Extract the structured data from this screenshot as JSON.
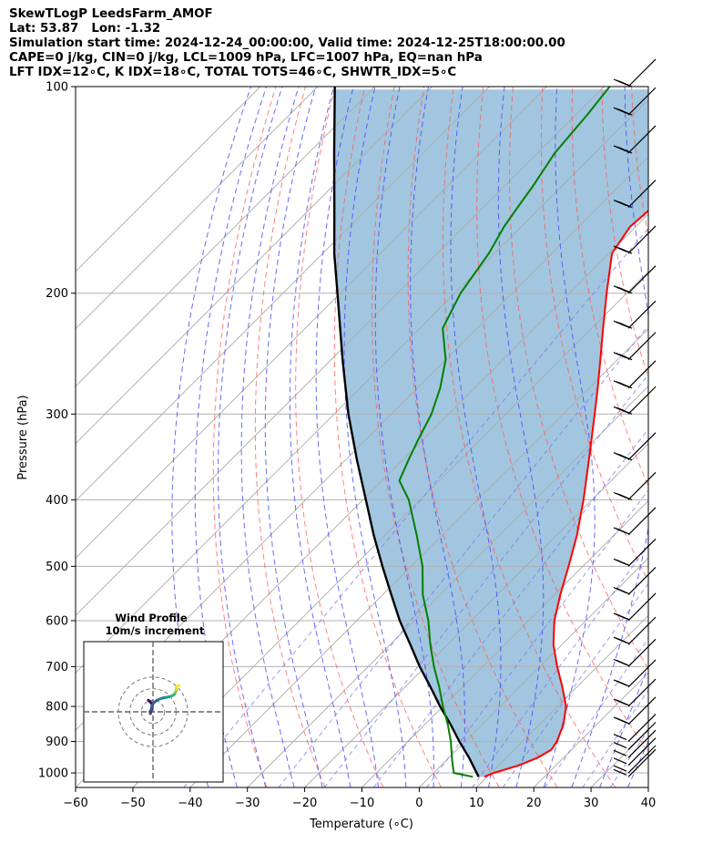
{
  "header": {
    "line1": "SkewTLogP LeedsFarm_AMOF",
    "line2": "Lat: 53.87   Lon: -1.32",
    "line3": "Simulation start time: 2024-12-24_00:00:00, Valid time: 2024-12-25T18:00:00.00",
    "line4": "CAPE=0 j/kg, CIN=0 j/kg, LCL=1009 hPa, LFC=1007 hPa, EQ=nan hPa",
    "line5": "LFT IDX=12∘C, K IDX=18∘C, TOTAL TOTS=46∘C, SHWTR_IDX=5∘C"
  },
  "chart_data": [
    {
      "type": "line",
      "subtype": "skew-t log-p",
      "xlabel": "Temperature (∘C)",
      "ylabel": "Pressure (hPa)",
      "xlim": [
        -60,
        40
      ],
      "ylim": [
        1050,
        100
      ],
      "y_scale": "log",
      "xticks": [
        "−60",
        "−50",
        "−40",
        "−30",
        "−20",
        "−10",
        "0",
        "10",
        "20",
        "30",
        "40"
      ],
      "yticks": [
        "100",
        "200",
        "300",
        "400",
        "500",
        "600",
        "700",
        "800",
        "900",
        "1000"
      ],
      "grid": true,
      "colors": {
        "temperature": "#ff0000",
        "dewpoint": "#008000",
        "parcel": "#000000",
        "fill": "#a2c6df",
        "dry_adiabat": "#ff5555",
        "moist_adiabat": "#4444ff",
        "mixing_ratio": "#7777ee",
        "isotherm": "#aaaaaa"
      },
      "series": [
        {
          "role": "temperature",
          "points": [
            [
              1013,
              9.5
            ],
            [
              1000,
              10.5
            ],
            [
              975,
              13.5
            ],
            [
              950,
              15.5
            ],
            [
              925,
              16.5
            ],
            [
              900,
              16.0
            ],
            [
              850,
              14.2
            ],
            [
              800,
              11.5
            ],
            [
              750,
              7.5
            ],
            [
              700,
              3.0
            ],
            [
              650,
              -1.5
            ],
            [
              600,
              -5.5
            ],
            [
              550,
              -9.0
            ],
            [
              500,
              -12.5
            ],
            [
              450,
              -16.5
            ],
            [
              400,
              -21.5
            ],
            [
              350,
              -27.5
            ],
            [
              300,
              -34.5
            ],
            [
              275,
              -38.5
            ],
            [
              250,
              -43.0
            ],
            [
              225,
              -48.0
            ],
            [
              200,
              -53.5
            ],
            [
              175,
              -59.5
            ],
            [
              170,
              -60.0
            ],
            [
              160,
              -61.0
            ],
            [
              150,
              -60.5
            ],
            [
              140,
              -59.0
            ],
            [
              130,
              -58.5
            ],
            [
              120,
              -59.0
            ],
            [
              110,
              -60.5
            ],
            [
              100,
              -62.0
            ]
          ]
        },
        {
          "role": "dewpoint",
          "points": [
            [
              1013,
              7.5
            ],
            [
              1000,
              3.5
            ],
            [
              975,
              2.0
            ],
            [
              950,
              0.5
            ],
            [
              900,
              -2.5
            ],
            [
              850,
              -6.0
            ],
            [
              800,
              -10.0
            ],
            [
              750,
              -14.0
            ],
            [
              700,
              -18.5
            ],
            [
              650,
              -23.0
            ],
            [
              600,
              -27.5
            ],
            [
              550,
              -33.0
            ],
            [
              500,
              -38.0
            ],
            [
              450,
              -44.5
            ],
            [
              400,
              -52.0
            ],
            [
              375,
              -57.0
            ],
            [
              350,
              -59.0
            ],
            [
              325,
              -61.0
            ],
            [
              300,
              -63.0
            ],
            [
              275,
              -66.0
            ],
            [
              250,
              -70.0
            ],
            [
              225,
              -76.0
            ],
            [
              200,
              -79.0
            ],
            [
              175,
              -81.0
            ],
            [
              160,
              -83.0
            ],
            [
              150,
              -84.0
            ],
            [
              140,
              -85.0
            ],
            [
              125,
              -87.0
            ],
            [
              110,
              -88.0
            ],
            [
              100,
              -89.0
            ]
          ]
        },
        {
          "role": "parcel",
          "points": [
            [
              1013,
              8.5
            ],
            [
              1000,
              7.5
            ],
            [
              950,
              3.5
            ],
            [
              900,
              -1.0
            ],
            [
              850,
              -5.5
            ],
            [
              800,
              -10.5
            ],
            [
              750,
              -15.5
            ],
            [
              700,
              -21.0
            ],
            [
              650,
              -26.5
            ],
            [
              600,
              -32.5
            ],
            [
              550,
              -38.5
            ],
            [
              500,
              -45.0
            ],
            [
              450,
              -52.0
            ],
            [
              400,
              -59.5
            ],
            [
              350,
              -68.0
            ],
            [
              300,
              -77.5
            ],
            [
              250,
              -88.0
            ],
            [
              200,
              -100.5
            ],
            [
              175,
              -108.0
            ],
            [
              150,
              -116.0
            ],
            [
              125,
              -125.5
            ],
            [
              100,
              -137.0
            ]
          ]
        }
      ],
      "wind_barbs_pressure": [
        1013,
        1000,
        975,
        950,
        925,
        900,
        850,
        800,
        750,
        700,
        650,
        600,
        550,
        500,
        450,
        400,
        350,
        300,
        275,
        250,
        225,
        200,
        175,
        150,
        125,
        110,
        100
      ]
    },
    {
      "type": "line",
      "subtype": "hodograph",
      "title": "Wind Profile",
      "subtitle": "10m/s increment",
      "rings": [
        10,
        20,
        30
      ],
      "points": [
        [
          10,
          -4
        ],
        [
          7.5,
          -1.2
        ],
        [
          5.0,
          -0.5
        ],
        [
          1.8,
          -1.5
        ],
        [
          0,
          -2.5
        ],
        [
          -1.5,
          -2.2
        ],
        [
          2.5,
          -1.0
        ],
        [
          5,
          -1.0
        ],
        [
          7.8,
          0.6
        ],
        [
          9.7,
          3.0
        ],
        [
          11,
          5.5
        ],
        [
          12.1,
          9
        ],
        [
          12.5,
          11.7
        ],
        [
          13.0,
          14.0
        ],
        [
          13.6,
          16.0
        ],
        [
          14.4,
          17.5
        ],
        [
          15.5,
          18.8
        ],
        [
          16.7,
          19.3
        ],
        [
          17.5,
          19.8
        ],
        [
          18.7,
          20.1
        ],
        [
          20.0,
          20.0
        ],
        [
          21.1,
          20.2
        ],
        [
          22,
          21.0
        ],
        [
          23,
          22.6
        ]
      ]
    }
  ]
}
